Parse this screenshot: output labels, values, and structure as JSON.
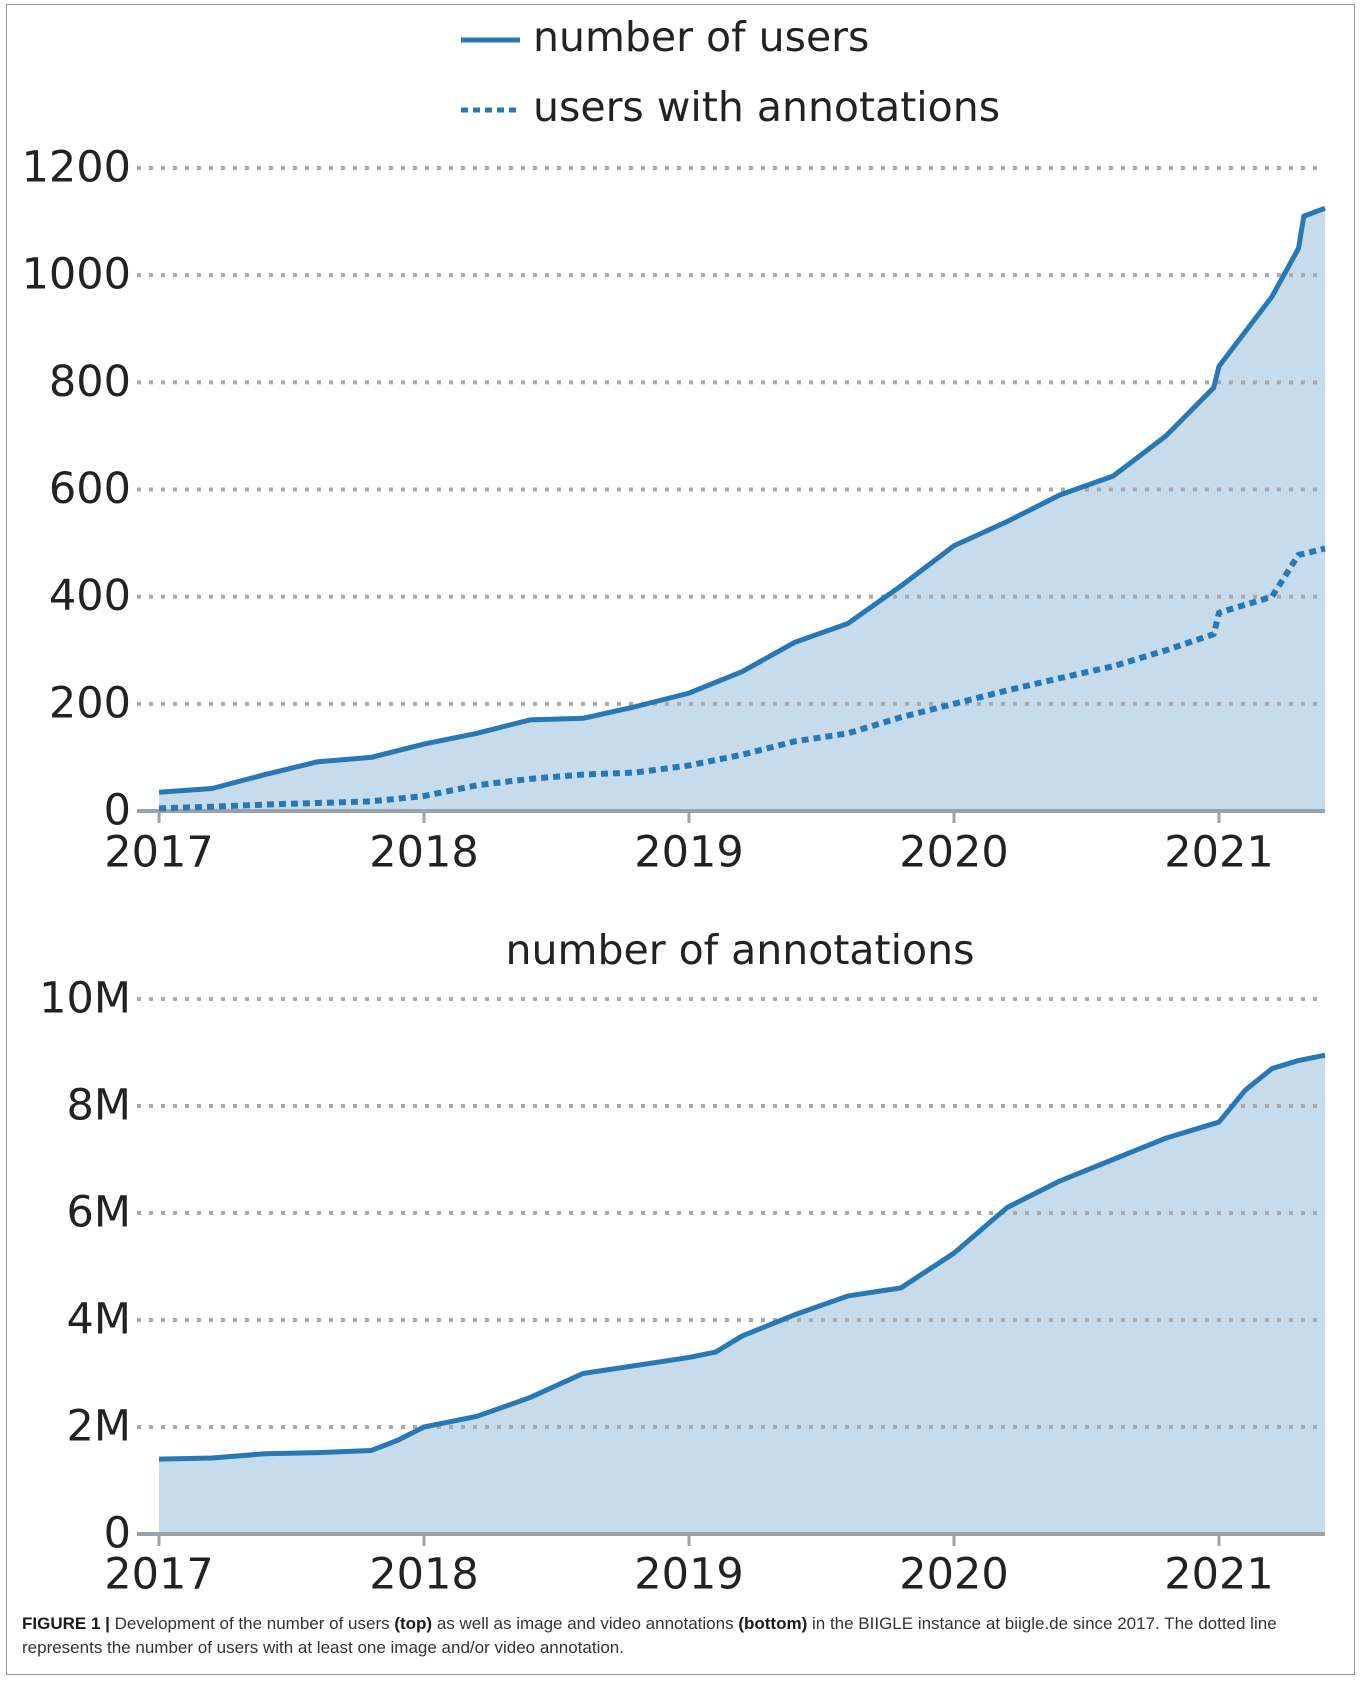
{
  "chart_data": [
    {
      "type": "area",
      "legend": "top",
      "x": [
        2017,
        2017.2,
        2017.4,
        2017.6,
        2017.8,
        2018,
        2018.2,
        2018.4,
        2018.6,
        2018.8,
        2019,
        2019.2,
        2019.4,
        2019.6,
        2019.8,
        2020,
        2020.2,
        2020.4,
        2020.6,
        2020.8,
        2020.98,
        2021,
        2021.2,
        2021.3,
        2021.32,
        2021.4
      ],
      "series": [
        {
          "name": "number of users",
          "color": "#2878b5",
          "fill": "#c6dcec",
          "linestyle": "solid",
          "values": [
            35,
            42,
            68,
            92,
            100,
            125,
            145,
            170,
            173,
            195,
            220,
            260,
            315,
            350,
            420,
            495,
            540,
            590,
            625,
            700,
            790,
            830,
            960,
            1050,
            1110,
            1125
          ]
        },
        {
          "name": "users with annotations",
          "color": "#2878b5",
          "linestyle": "dotted",
          "values": [
            5,
            8,
            12,
            15,
            18,
            28,
            48,
            60,
            68,
            72,
            85,
            105,
            130,
            145,
            175,
            200,
            225,
            248,
            270,
            300,
            330,
            370,
            400,
            478,
            480,
            490
          ]
        }
      ],
      "xlim": [
        2017,
        2021.4
      ],
      "xticks": [
        2017,
        2018,
        2019,
        2020,
        2021
      ],
      "ylim": [
        0,
        1200
      ],
      "yticks": [
        0,
        200,
        400,
        600,
        800,
        1000,
        1200
      ],
      "grid": true
    },
    {
      "type": "area",
      "title": "number of annotations",
      "x": [
        2017,
        2017.2,
        2017.4,
        2017.6,
        2017.8,
        2017.9,
        2018,
        2018.2,
        2018.4,
        2018.6,
        2018.8,
        2019,
        2019.1,
        2019.2,
        2019.4,
        2019.6,
        2019.8,
        2020,
        2020.2,
        2020.4,
        2020.6,
        2020.8,
        2021,
        2021.1,
        2021.2,
        2021.3,
        2021.4
      ],
      "series": [
        {
          "color": "#2878b5",
          "fill": "#c6dcec",
          "linestyle": "solid",
          "values": [
            1400000,
            1420000,
            1500000,
            1520000,
            1560000,
            1750000,
            2000000,
            2200000,
            2550000,
            3000000,
            3150000,
            3300000,
            3400000,
            3700000,
            4100000,
            4450000,
            4600000,
            5250000,
            6100000,
            6600000,
            7000000,
            7400000,
            7700000,
            8300000,
            8700000,
            8850000,
            8950000
          ]
        }
      ],
      "xlim": [
        2017,
        2021.4
      ],
      "xticks": [
        2017,
        2018,
        2019,
        2020,
        2021
      ],
      "ylim": [
        0,
        10000000
      ],
      "yticks": [
        0,
        {
          "value": 2000000,
          "label": "2M"
        },
        {
          "value": 4000000,
          "label": "4M"
        },
        {
          "value": 6000000,
          "label": "6M"
        },
        {
          "value": 8000000,
          "label": "8M"
        },
        {
          "value": 10000000,
          "label": "10M"
        }
      ],
      "grid": true
    }
  ],
  "caption": {
    "label": "FIGURE 1 |",
    "text1": "Development of the number of users",
    "bold1": "(top)",
    "text2": "as well as image and video annotations",
    "bold2": "(bottom)",
    "text3": "in the BIIGLE instance at biigle.de since 2017. The dotted line represents the number of users with at least one image and/or video annotation."
  }
}
